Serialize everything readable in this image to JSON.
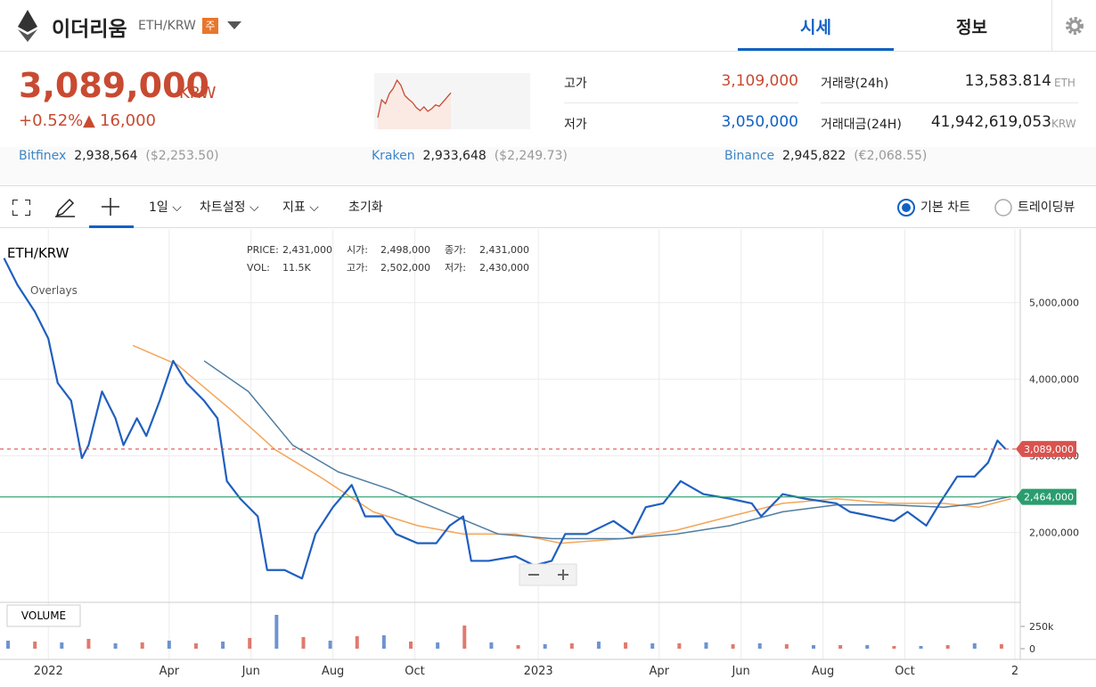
{
  "header": {
    "name": "이더리움",
    "pair": "ETH/KRW",
    "badge": "주",
    "tabs": [
      "시세",
      "정보"
    ]
  },
  "price": {
    "current": "3,089,000",
    "unit": "KRW",
    "change_pct": "+0.52%",
    "change": "16,000",
    "sparkline": [
      3050,
      3078,
      3072,
      3088,
      3096,
      3109,
      3101,
      3085,
      3079,
      3074,
      3066,
      3061,
      3067,
      3060,
      3064,
      3070,
      3068,
      3075,
      3082,
      3089
    ]
  },
  "stats": [
    {
      "label": "고가",
      "value": "3,109,000"
    },
    {
      "label": "저가",
      "value": "3,050,000"
    },
    {
      "label": "거래량(24h)",
      "value": "13,583.814",
      "unit": "ETH"
    },
    {
      "label": "거래대금(24H)",
      "value": "41,942,619,053",
      "unit": "KRW"
    }
  ],
  "exchanges": [
    {
      "name": "Bitfinex",
      "price": "2,938,564",
      "foreign": "($2,253.50)"
    },
    {
      "name": "Kraken",
      "price": "2,933,648",
      "foreign": "($2,249.73)"
    },
    {
      "name": "Binance",
      "price": "2,945,822",
      "foreign": "(€2,068.55)"
    }
  ],
  "toolbar": {
    "interval": "1일",
    "settings": "차트설정",
    "indicators": "지표",
    "reset": "초기화",
    "radios": [
      "기본 차트",
      "트레이딩뷰"
    ]
  },
  "chart": {
    "symbol": "ETH/KRW",
    "overlays": "Overlays",
    "volume_label": "VOLUME",
    "info": [
      [
        "PRICE:",
        "2,431,000",
        "시가:",
        "2,498,000",
        "종가:",
        "2,431,000"
      ],
      [
        "VOL:",
        "11.5K",
        "고가:",
        "2,502,000",
        "저가:",
        "2,430,000"
      ]
    ],
    "xlim": [
      -36,
      724
    ],
    "ylim": [
      1100000,
      5960000
    ],
    "xticks": [
      {
        "value": 0,
        "label": "2022"
      },
      {
        "value": 90,
        "label": "Apr"
      },
      {
        "value": 151,
        "label": "Jun"
      },
      {
        "value": 212,
        "label": "Aug"
      },
      {
        "value": 273,
        "label": "Oct"
      },
      {
        "value": 365,
        "label": "2023"
      },
      {
        "value": 455,
        "label": "Apr"
      },
      {
        "value": 516,
        "label": "Jun"
      },
      {
        "value": 577,
        "label": "Aug"
      },
      {
        "value": 638,
        "label": "Oct"
      },
      {
        "value": 720,
        "label": "2"
      }
    ],
    "yticks": [
      {
        "value": 2000000,
        "label": "2,000,000"
      },
      {
        "value": 3000000,
        "label": "3,000,000"
      },
      {
        "value": 4000000,
        "label": "4,000,000"
      },
      {
        "value": 5000000,
        "label": "5,000,000"
      }
    ],
    "price_line": {
      "value": 3089000,
      "label": "3,089,000"
    },
    "level_line": {
      "value": 2464000,
      "label": "2,464,000"
    },
    "prices": {
      "color": "#1f5fbf",
      "x": [
        -33,
        -23,
        -10,
        0,
        7,
        17,
        25,
        30,
        40,
        50,
        56,
        66,
        73,
        83,
        93,
        103,
        116,
        126,
        133,
        143,
        156,
        163,
        176,
        189,
        199,
        212,
        226,
        236,
        249,
        259,
        275,
        289,
        299,
        309,
        315,
        328,
        348,
        362,
        375,
        385,
        401,
        421,
        435,
        445,
        458,
        471,
        488,
        508,
        524,
        531,
        547,
        564,
        587,
        597,
        614,
        630,
        640,
        654,
        664,
        677,
        690,
        700,
        707,
        713
      ],
      "values": [
        5580000,
        5230000,
        4880000,
        4530000,
        3950000,
        3720000,
        2970000,
        3140000,
        3840000,
        3490000,
        3140000,
        3490000,
        3260000,
        3720000,
        4240000,
        3950000,
        3720000,
        3490000,
        2670000,
        2440000,
        2210000,
        1510000,
        1510000,
        1400000,
        1980000,
        2330000,
        2620000,
        2210000,
        2210000,
        1980000,
        1860000,
        1860000,
        2090000,
        2210000,
        1630000,
        1630000,
        1690000,
        1570000,
        1630000,
        1980000,
        1980000,
        2150000,
        1980000,
        2330000,
        2380000,
        2670000,
        2500000,
        2440000,
        2380000,
        2210000,
        2500000,
        2440000,
        2380000,
        2270000,
        2210000,
        2150000,
        2270000,
        2090000,
        2380000,
        2730000,
        2730000,
        2910000,
        3200000,
        3090000
      ]
    },
    "ma_slow": {
      "color": "#4f7da0",
      "x": [
        116,
        149,
        182,
        216,
        255,
        295,
        335,
        375,
        428,
        468,
        508,
        547,
        587,
        627,
        667,
        693,
        717
      ],
      "values": [
        4240000,
        3840000,
        3140000,
        2790000,
        2560000,
        2270000,
        1980000,
        1920000,
        1920000,
        1980000,
        2090000,
        2270000,
        2360000,
        2360000,
        2330000,
        2380000,
        2470000
      ]
    },
    "ma_fast": {
      "color": "#f5a55a",
      "x": [
        63,
        96,
        136,
        169,
        202,
        242,
        275,
        309,
        348,
        382,
        428,
        468,
        508,
        547,
        587,
        627,
        667,
        693,
        717
      ],
      "values": [
        4440000,
        4190000,
        3600000,
        3080000,
        2730000,
        2270000,
        2090000,
        1980000,
        1980000,
        1860000,
        1920000,
        2030000,
        2210000,
        2380000,
        2440000,
        2380000,
        2380000,
        2330000,
        2440000
      ]
    },
    "volume": {
      "ylim": [
        0,
        520000
      ],
      "yticks": [
        {
          "value": 0,
          "label": "0"
        },
        {
          "value": 250000,
          "label": "250k"
        }
      ],
      "x": [
        -30,
        -10,
        10,
        30,
        50,
        70,
        90,
        110,
        130,
        150,
        170,
        190,
        210,
        230,
        250,
        270,
        290,
        310,
        330,
        350,
        370,
        390,
        410,
        430,
        450,
        470,
        490,
        510,
        530,
        550,
        570,
        590,
        610,
        630,
        650,
        670,
        690,
        710
      ],
      "values": [
        90000,
        80000,
        70000,
        110000,
        60000,
        70000,
        90000,
        60000,
        80000,
        120000,
        380000,
        130000,
        90000,
        140000,
        150000,
        80000,
        70000,
        260000,
        70000,
        40000,
        50000,
        60000,
        80000,
        70000,
        60000,
        60000,
        70000,
        50000,
        60000,
        50000,
        40000,
        40000,
        40000,
        30000,
        30000,
        40000,
        60000,
        50000
      ]
    }
  }
}
